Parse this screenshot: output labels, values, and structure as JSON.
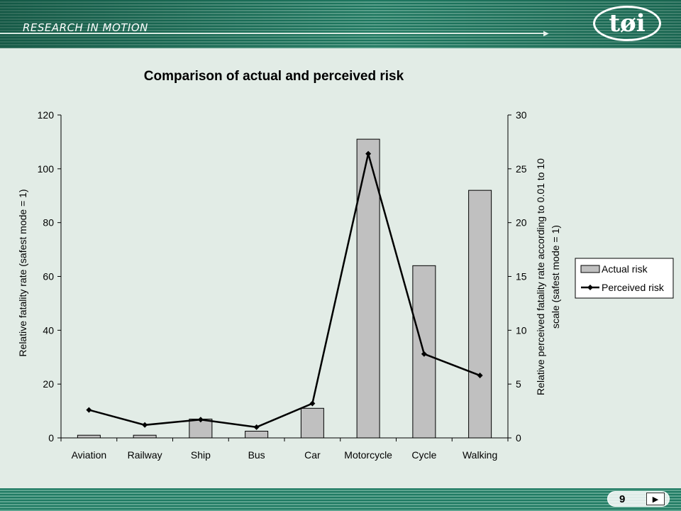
{
  "header": {
    "brand": "RESEARCH IN MOTION",
    "logo_text": "tøi"
  },
  "footer": {
    "page_number": "9",
    "next_icon": "play-triangle"
  },
  "colors": {
    "banner": "#1f7a62",
    "background": "#e2ece6",
    "bar_fill": "#c0c0c0",
    "line": "#000000"
  },
  "chart_data": {
    "type": "bar",
    "title": "Comparison of actual and perceived risk",
    "categories": [
      "Aviation",
      "Railway",
      "Ship",
      "Bus",
      "Car",
      "Motorcycle",
      "Cycle",
      "Walking"
    ],
    "ylabel": "Relative fatality rate (safest mode = 1)",
    "y2label_lines": [
      "Relative perceived fatality rate according to 0.01 to 10",
      "scale (safest mode = 1)"
    ],
    "ylim": [
      0,
      120
    ],
    "yticks": [
      0,
      20,
      40,
      60,
      80,
      100,
      120
    ],
    "y2lim": [
      0,
      30
    ],
    "y2ticks": [
      0,
      5,
      10,
      15,
      20,
      25,
      30
    ],
    "series": [
      {
        "name": "Actual risk",
        "type": "bar",
        "axis": "left",
        "values": [
          1,
          1,
          7,
          2.5,
          11,
          111,
          64,
          92
        ]
      },
      {
        "name": "Perceived risk",
        "type": "line",
        "axis": "right",
        "values": [
          2.6,
          1.2,
          1.7,
          1.0,
          3.2,
          26.4,
          7.8,
          5.8
        ]
      }
    ],
    "legend": "right",
    "grid": false
  }
}
